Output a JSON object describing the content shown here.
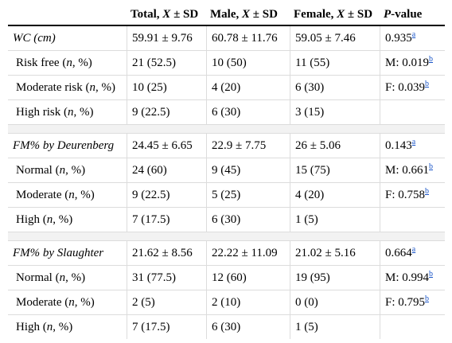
{
  "headers": {
    "col1": "",
    "total_a": "Total, ",
    "total_i": "X",
    "total_b": " ± SD",
    "male_a": "Male, ",
    "male_i": "X",
    "male_b": " ± SD",
    "female_a": "Female, ",
    "female_i": "X",
    "female_b": " ± SD",
    "p_i": "P",
    "p_b": "-value"
  },
  "sections": [
    {
      "name": "WC (cm)",
      "total": "59.91 ± 9.76",
      "male": "60.78 ± 11.76",
      "female": "59.05 ± 7.46",
      "p": "0.935",
      "p_sup": "a",
      "rows": [
        {
          "pre": "Risk free (",
          "n": "n",
          "post": ", %)",
          "total": "21 (52.5)",
          "male": "10 (50)",
          "female": "11 (55)",
          "p": "M: 0.019",
          "p_sup": "b"
        },
        {
          "pre": "Moderate risk (",
          "n": "n",
          "post": ", %)",
          "total": "10 (25)",
          "male": "4 (20)",
          "female": "6 (30)",
          "p": "F: 0.039",
          "p_sup": "b"
        },
        {
          "pre": "High risk (",
          "n": "n",
          "post": ", %)",
          "total": "9 (22.5)",
          "male": "6 (30)",
          "female": "3 (15)",
          "p": "",
          "p_sup": ""
        }
      ]
    },
    {
      "name": "FM% by Deurenberg",
      "total": "24.45 ± 6.65",
      "male": "22.9 ± 7.75",
      "female": "26 ± 5.06",
      "p": "0.143",
      "p_sup": "a",
      "rows": [
        {
          "pre": "Normal (",
          "n": "n",
          "post": ", %)",
          "total": "24 (60)",
          "male": "9 (45)",
          "female": "15 (75)",
          "p": "M: 0.661",
          "p_sup": "b"
        },
        {
          "pre": "Moderate (",
          "n": "n",
          "post": ", %)",
          "total": "9 (22.5)",
          "male": "5 (25)",
          "female": "4 (20)",
          "p": "F: 0.758",
          "p_sup": "b"
        },
        {
          "pre": "High (",
          "n": "n",
          "post": ", %)",
          "total": "7 (17.5)",
          "male": "6 (30)",
          "female": "1 (5)",
          "p": "",
          "p_sup": ""
        }
      ]
    },
    {
      "name": "FM% by Slaughter",
      "total": "21.62 ± 8.56",
      "male": "22.22 ± 11.09",
      "female": "21.02 ± 5.16",
      "p": "0.664",
      "p_sup": "a",
      "rows": [
        {
          "pre": "Normal (",
          "n": "n",
          "post": ", %)",
          "total": "31 (77.5)",
          "male": "12 (60)",
          "female": "19 (95)",
          "p": "M: 0.994",
          "p_sup": "b"
        },
        {
          "pre": "Moderate (",
          "n": "n",
          "post": ", %)",
          "total": "2 (5)",
          "male": "2 (10)",
          "female": "0 (0)",
          "p": "F: 0.795",
          "p_sup": "b"
        },
        {
          "pre": "High (",
          "n": "n",
          "post": ", %)",
          "total": "7 (17.5)",
          "male": "6 (30)",
          "female": "1 (5)",
          "p": "",
          "p_sup": ""
        }
      ]
    }
  ]
}
